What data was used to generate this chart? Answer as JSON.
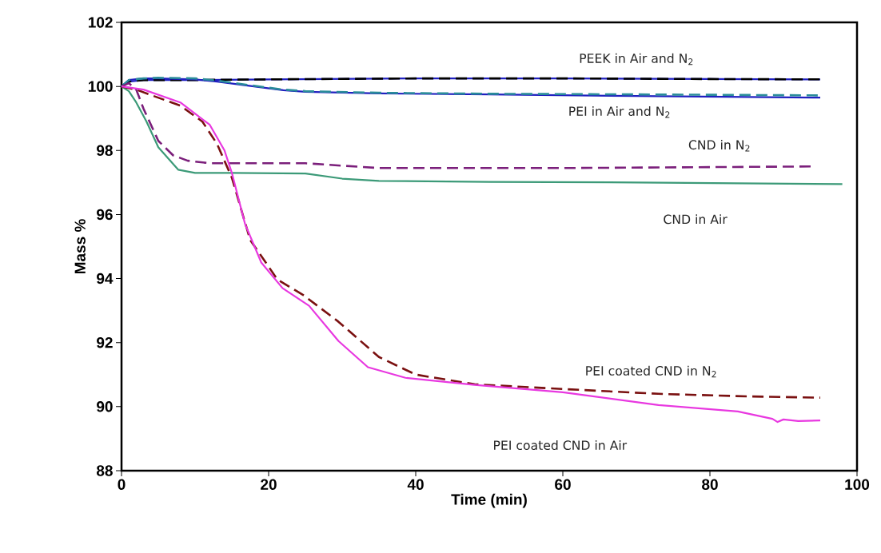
{
  "chart_data": {
    "type": "line",
    "xlabel": "Time (min)",
    "ylabel": "Mass %",
    "xlim": [
      0,
      100
    ],
    "xticks": [
      0,
      20,
      40,
      60,
      80,
      100
    ],
    "ylim": [
      88,
      102
    ],
    "yticks": [
      88,
      90,
      92,
      94,
      96,
      98,
      100,
      102
    ],
    "grid": false,
    "series": [
      {
        "color": "#2020c0",
        "line_style": "solid",
        "x": [
          0,
          1,
          3,
          6,
          10,
          20,
          40,
          60,
          80,
          95
        ],
        "values": [
          100.0,
          100.15,
          100.2,
          100.2,
          100.2,
          100.22,
          100.25,
          100.25,
          100.23,
          100.22
        ]
      },
      {
        "color": "#000000",
        "line_style": "dashed",
        "x": [
          0,
          1,
          3,
          6,
          10,
          20,
          40,
          60,
          80,
          95
        ],
        "values": [
          100.0,
          100.15,
          100.2,
          100.2,
          100.2,
          100.22,
          100.25,
          100.25,
          100.23,
          100.22
        ]
      },
      {
        "color": "#2020c0",
        "line_style": "solid",
        "x": [
          0,
          1,
          3,
          5,
          10,
          13,
          18,
          22,
          25,
          35,
          50,
          70,
          95
        ],
        "values": [
          100.0,
          100.2,
          100.25,
          100.25,
          100.22,
          100.15,
          100.0,
          99.88,
          99.83,
          99.78,
          99.75,
          99.7,
          99.65
        ]
      },
      {
        "color": "#2a8c9a",
        "line_style": "dashed",
        "x": [
          0,
          1,
          3,
          5,
          10,
          13,
          18,
          22,
          25,
          35,
          50,
          70,
          95
        ],
        "values": [
          100.0,
          100.2,
          100.25,
          100.27,
          100.25,
          100.18,
          100.02,
          99.9,
          99.85,
          99.8,
          99.77,
          99.75,
          99.72
        ]
      },
      {
        "color": "#3c9a78",
        "line_style": "solid",
        "x": [
          0,
          1,
          2,
          3.4,
          5,
          7.7,
          10,
          15,
          25,
          30,
          35,
          50,
          70,
          98
        ],
        "values": [
          100.0,
          99.85,
          99.5,
          98.9,
          98.1,
          97.4,
          97.3,
          97.3,
          97.28,
          97.12,
          97.05,
          97.02,
          97.0,
          96.95
        ]
      },
      {
        "color": "#7b1f7b",
        "line_style": "dashed",
        "x": [
          0,
          1,
          2,
          3,
          5,
          7,
          9,
          12,
          25,
          35,
          60,
          80,
          94
        ],
        "values": [
          100.0,
          100.1,
          99.9,
          99.3,
          98.3,
          97.85,
          97.68,
          97.6,
          97.6,
          97.45,
          97.45,
          97.48,
          97.5
        ]
      },
      {
        "color": "#7a1010",
        "line_style": "dashed",
        "x": [
          0,
          2,
          4,
          8,
          11,
          13,
          15,
          17.5,
          21.2,
          24.8,
          29.5,
          35,
          40,
          48,
          60,
          73,
          85,
          95
        ],
        "values": [
          100.0,
          99.9,
          99.73,
          99.4,
          98.9,
          98.2,
          97.15,
          95.2,
          93.97,
          93.47,
          92.65,
          91.55,
          91.0,
          90.7,
          90.55,
          90.4,
          90.32,
          90.28
        ]
      },
      {
        "color": "#e838e0",
        "line_style": "solid",
        "x": [
          0,
          3,
          8,
          12,
          14,
          15,
          16.8,
          19,
          21.9,
          25.5,
          29.5,
          33.5,
          38.6,
          48,
          60,
          73,
          83.8,
          88.5,
          89.2,
          90,
          92,
          95
        ],
        "values": [
          100.0,
          99.9,
          99.5,
          98.8,
          98.0,
          97.3,
          95.7,
          94.5,
          93.7,
          93.15,
          92.05,
          91.23,
          90.9,
          90.68,
          90.45,
          90.05,
          89.85,
          89.62,
          89.52,
          89.6,
          89.55,
          89.57
        ]
      }
    ],
    "annotations": [
      "PEEK in Air and N$_{2}$",
      "PEI in Air and N$_{2}$",
      "CND in N$_{2}$",
      "CND in Air",
      "PEI coated CND in N$_{2}$",
      "PEI coated CND in Air"
    ]
  }
}
